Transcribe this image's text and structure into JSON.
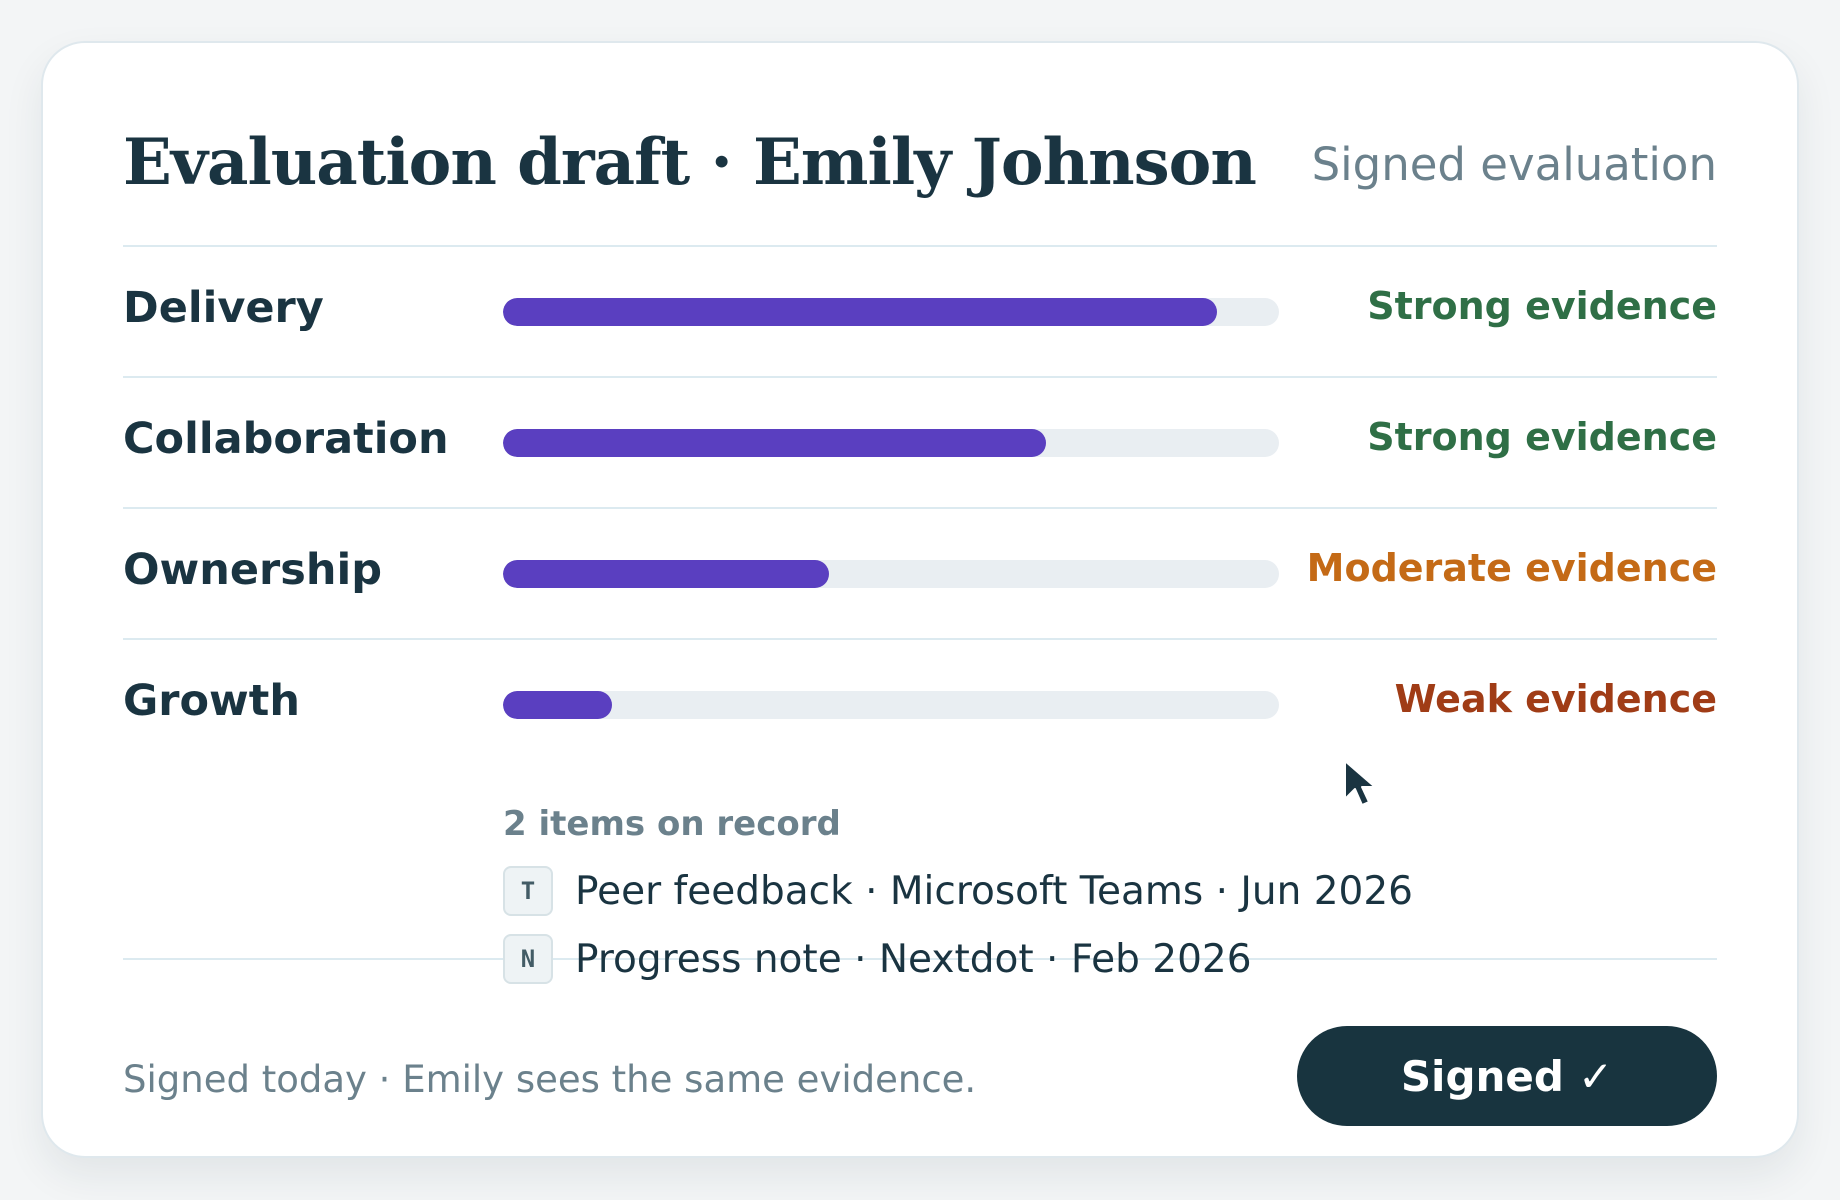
{
  "header": {
    "title": "Evaluation draft · Emily Johnson",
    "status": "Signed evaluation"
  },
  "rows": [
    {
      "label": "Delivery",
      "evidence": "Strong evidence",
      "evidence_color": "#2f6f46",
      "level": 0.92
    },
    {
      "label": "Collaboration",
      "evidence": "Strong evidence",
      "evidence_color": "#2f6f46",
      "level": 0.7
    },
    {
      "label": "Ownership",
      "evidence": "Moderate evidence",
      "evidence_color": "#c46a16",
      "level": 0.42
    },
    {
      "label": "Growth",
      "evidence": "Weak evidence",
      "evidence_color": "#a03c16",
      "level": 0.14
    }
  ],
  "growth_details": {
    "heading": "2 items on record",
    "items": [
      {
        "badge": "T",
        "text": "Peer feedback · Microsoft Teams · Jun 2026"
      },
      {
        "badge": "N",
        "text": "Progress note · Nextdot · Feb 2026"
      }
    ]
  },
  "footer": {
    "note": "Signed today · Emily sees the same evidence.",
    "button_label": "Signed",
    "button_check": "✓"
  },
  "icons": {
    "cursor": "mouse-pointer-icon",
    "badge_teams": "teams-source-icon",
    "badge_nextdot": "nextdot-source-icon"
  },
  "colors": {
    "accent": "#5a3fc0",
    "track": "#e9eef2",
    "button": "#18343f",
    "divider": "#dceaf0"
  }
}
